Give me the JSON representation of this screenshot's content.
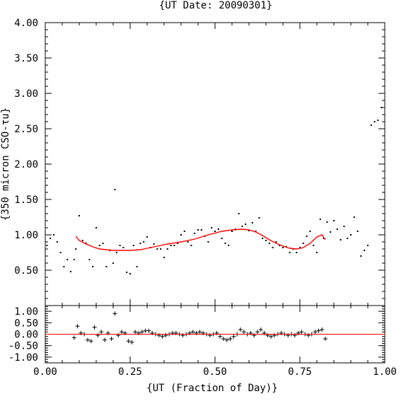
{
  "chart_data": [
    {
      "type": "scatter",
      "title": "{UT Date: 20090301}",
      "xlabel": "",
      "ylabel": "{350 micron CSO-τu}",
      "xlim": [
        0.0,
        1.0
      ],
      "ylim": [
        0.0,
        4.0
      ],
      "yticks": [
        "4.00",
        "3.50",
        "3.00",
        "2.50",
        "2.00",
        "1.50",
        "1.00",
        "0.50"
      ],
      "xticks": [],
      "grid": false,
      "series": [
        {
          "style": "points",
          "color": "#000000",
          "x": [
            0.005,
            0.015,
            0.025,
            0.035,
            0.045,
            0.055,
            0.065,
            0.075,
            0.085,
            0.09,
            0.1,
            0.11,
            0.12,
            0.13,
            0.14,
            0.15,
            0.16,
            0.17,
            0.18,
            0.19,
            0.2,
            0.205,
            0.21,
            0.22,
            0.23,
            0.24,
            0.25,
            0.26,
            0.27,
            0.28,
            0.29,
            0.3,
            0.31,
            0.32,
            0.33,
            0.34,
            0.35,
            0.36,
            0.37,
            0.38,
            0.39,
            0.4,
            0.41,
            0.42,
            0.43,
            0.44,
            0.45,
            0.46,
            0.47,
            0.48,
            0.49,
            0.5,
            0.51,
            0.52,
            0.53,
            0.54,
            0.55,
            0.56,
            0.57,
            0.58,
            0.59,
            0.6,
            0.61,
            0.62,
            0.63,
            0.64,
            0.65,
            0.66,
            0.67,
            0.68,
            0.69,
            0.7,
            0.71,
            0.72,
            0.73,
            0.74,
            0.75,
            0.76,
            0.77,
            0.78,
            0.79,
            0.8,
            0.81,
            0.82,
            0.83,
            0.84,
            0.85,
            0.86,
            0.87,
            0.88,
            0.89,
            0.9,
            0.91,
            0.92,
            0.93,
            0.94,
            0.95,
            0.96,
            0.97,
            0.98,
            0.99
          ],
          "y": [
            0.85,
            0.95,
            1.0,
            0.9,
            0.75,
            0.55,
            0.65,
            0.48,
            0.65,
            0.8,
            1.27,
            0.92,
            0.88,
            0.65,
            0.55,
            1.1,
            0.85,
            0.88,
            0.55,
            0.78,
            0.6,
            1.64,
            0.75,
            0.85,
            0.82,
            0.47,
            0.45,
            0.85,
            0.55,
            0.88,
            0.9,
            0.97,
            0.82,
            0.87,
            0.8,
            0.8,
            0.68,
            0.8,
            0.85,
            0.85,
            0.88,
            1.0,
            1.05,
            0.9,
            0.85,
            1.02,
            1.07,
            1.07,
            0.98,
            0.9,
            1.1,
            1.05,
            1.08,
            0.95,
            0.88,
            0.85,
            1.05,
            1.08,
            1.3,
            1.12,
            1.15,
            1.06,
            1.17,
            1.05,
            1.24,
            0.95,
            0.92,
            0.88,
            0.82,
            0.9,
            0.85,
            0.82,
            0.83,
            0.75,
            0.8,
            0.75,
            0.82,
            0.88,
            0.98,
            1.05,
            0.85,
            0.75,
            1.22,
            0.95,
            1.18,
            1.04,
            1.2,
            1.08,
            0.93,
            1.12,
            0.95,
            1.0,
            1.25,
            1.05,
            0.7,
            0.78,
            0.85,
            2.55,
            2.6,
            2.62,
            2.8
          ]
        },
        {
          "style": "line",
          "color": "#ff0000",
          "x": [
            0.09,
            0.1,
            0.12,
            0.14,
            0.16,
            0.18,
            0.2,
            0.22,
            0.25,
            0.28,
            0.3,
            0.33,
            0.36,
            0.4,
            0.44,
            0.48,
            0.52,
            0.55,
            0.58,
            0.6,
            0.62,
            0.64,
            0.66,
            0.68,
            0.7,
            0.72,
            0.74,
            0.76,
            0.78,
            0.8,
            0.815,
            0.825
          ],
          "y": [
            0.98,
            0.92,
            0.87,
            0.83,
            0.8,
            0.79,
            0.78,
            0.78,
            0.78,
            0.79,
            0.81,
            0.84,
            0.87,
            0.9,
            0.94,
            1.0,
            1.05,
            1.07,
            1.08,
            1.07,
            1.04,
            0.99,
            0.93,
            0.88,
            0.84,
            0.81,
            0.8,
            0.82,
            0.88,
            0.97,
            1.0,
            0.93
          ]
        }
      ]
    },
    {
      "type": "scatter",
      "title": "",
      "xlabel": "{UT (Fraction of Day)}",
      "ylabel": "",
      "xlim": [
        0.0,
        1.0
      ],
      "ylim": [
        -1.25,
        1.25
      ],
      "yticks": [
        "1.00",
        "0.50",
        "0.00",
        "-0.50",
        "-1.00"
      ],
      "xticks": [
        "0.00",
        "0.25",
        "0.50",
        "0.75",
        "1.00"
      ],
      "grid": false,
      "series": [
        {
          "style": "plus",
          "color": "#000000",
          "x": [
            0.085,
            0.095,
            0.105,
            0.115,
            0.125,
            0.135,
            0.145,
            0.155,
            0.165,
            0.175,
            0.185,
            0.195,
            0.205,
            0.215,
            0.225,
            0.235,
            0.245,
            0.255,
            0.265,
            0.275,
            0.285,
            0.295,
            0.305,
            0.315,
            0.325,
            0.335,
            0.345,
            0.355,
            0.365,
            0.375,
            0.385,
            0.395,
            0.405,
            0.415,
            0.425,
            0.435,
            0.445,
            0.455,
            0.465,
            0.475,
            0.485,
            0.495,
            0.505,
            0.515,
            0.525,
            0.535,
            0.545,
            0.555,
            0.565,
            0.575,
            0.585,
            0.595,
            0.605,
            0.615,
            0.625,
            0.635,
            0.645,
            0.655,
            0.665,
            0.675,
            0.685,
            0.695,
            0.705,
            0.715,
            0.725,
            0.735,
            0.745,
            0.755,
            0.765,
            0.775,
            0.785,
            0.795,
            0.805,
            0.815,
            0.825
          ],
          "y": [
            -0.15,
            0.35,
            0.05,
            0.0,
            -0.25,
            -0.3,
            0.3,
            -0.05,
            0.1,
            -0.25,
            0.05,
            -0.2,
            0.9,
            -0.05,
            0.1,
            0.05,
            -0.3,
            -0.35,
            0.1,
            0.05,
            0.1,
            0.15,
            0.15,
            0.05,
            0.0,
            -0.05,
            -0.1,
            -0.05,
            0.0,
            0.05,
            0.05,
            0.0,
            -0.05,
            0.0,
            0.05,
            0.1,
            0.05,
            0.1,
            0.05,
            0.0,
            -0.05,
            0.0,
            0.05,
            -0.1,
            -0.2,
            -0.25,
            -0.2,
            -0.1,
            0.0,
            0.2,
            0.1,
            0.0,
            0.05,
            -0.05,
            0.1,
            0.2,
            0.05,
            -0.05,
            -0.1,
            -0.05,
            0.0,
            0.05,
            0.0,
            -0.05,
            0.0,
            -0.05,
            0.05,
            0.1,
            0.0,
            -0.05,
            0.0,
            0.1,
            0.15,
            0.2,
            -0.2
          ]
        },
        {
          "style": "hline",
          "color": "#ff0000",
          "y": 0.0
        }
      ]
    }
  ]
}
